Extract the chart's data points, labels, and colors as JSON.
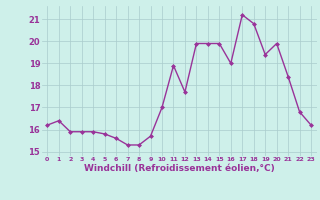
{
  "x": [
    0,
    1,
    2,
    3,
    4,
    5,
    6,
    7,
    8,
    9,
    10,
    11,
    12,
    13,
    14,
    15,
    16,
    17,
    18,
    19,
    20,
    21,
    22,
    23
  ],
  "y": [
    16.2,
    16.4,
    15.9,
    15.9,
    15.9,
    15.8,
    15.6,
    15.3,
    15.3,
    15.7,
    17.0,
    18.9,
    17.7,
    19.9,
    19.9,
    19.9,
    19.0,
    21.2,
    20.8,
    19.4,
    19.9,
    18.4,
    16.8,
    16.2
  ],
  "line_color": "#993399",
  "marker": "D",
  "markersize": 2.0,
  "linewidth": 1.0,
  "xlabel": "Windchill (Refroidissement éolien,°C)",
  "xlabel_fontsize": 6.5,
  "bg_color": "#cef0ea",
  "grid_color": "#aacccc",
  "tick_color": "#993399",
  "label_color": "#993399",
  "ylim": [
    14.8,
    21.6
  ],
  "yticks": [
    15,
    16,
    17,
    18,
    19,
    20,
    21
  ],
  "xticks": [
    0,
    1,
    2,
    3,
    4,
    5,
    6,
    7,
    8,
    9,
    10,
    11,
    12,
    13,
    14,
    15,
    16,
    17,
    18,
    19,
    20,
    21,
    22,
    23
  ],
  "xlim": [
    -0.5,
    23.5
  ]
}
